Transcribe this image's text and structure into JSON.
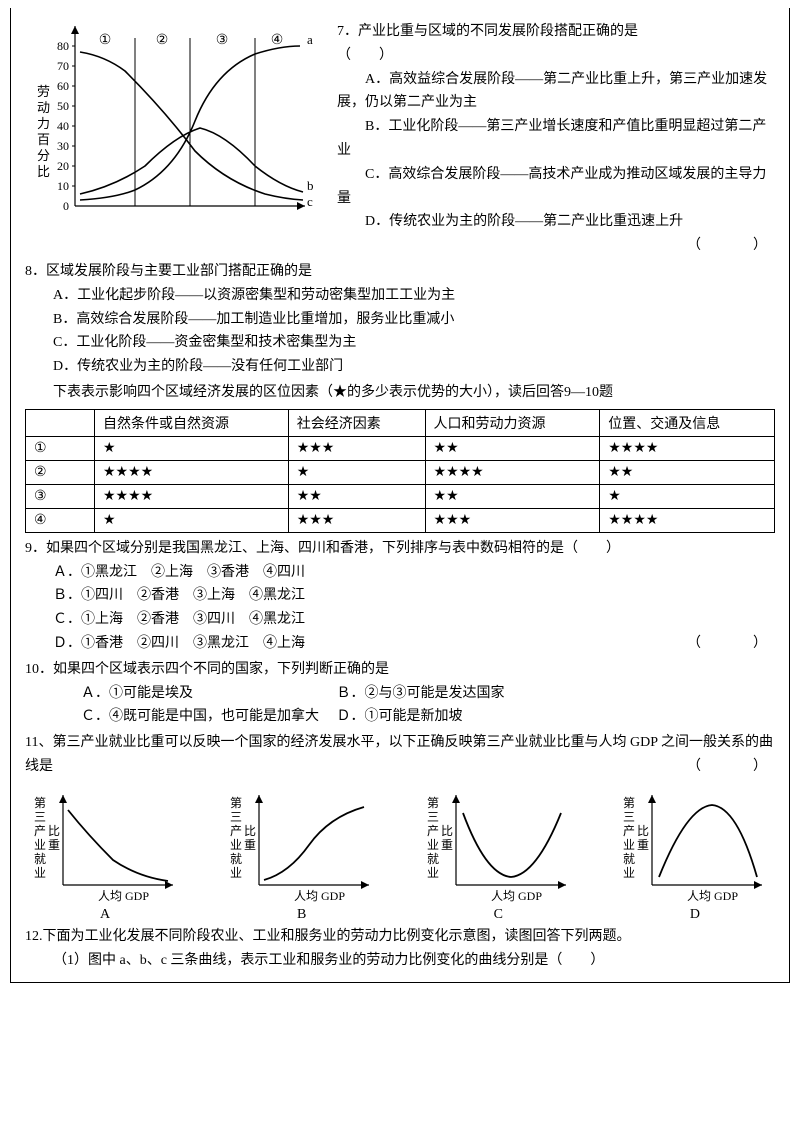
{
  "chart1": {
    "y_label": "劳动力百分比",
    "y_ticks": [
      0,
      10,
      20,
      30,
      40,
      50,
      60,
      70,
      80
    ],
    "segments": [
      "①",
      "②",
      "③",
      "④"
    ],
    "seg_x": [
      60,
      110,
      165,
      230,
      270
    ],
    "series": {
      "a": {
        "label": "a",
        "y_end": 78
      },
      "b": {
        "label": "b"
      },
      "c": {
        "label": "c"
      }
    },
    "colors": {
      "axis": "#000000",
      "line": "#000000"
    }
  },
  "q7": {
    "stem": "7．产业比重与区域的不同发展阶段搭配正确的是",
    "paren": "（　　）",
    "A": "A．高效益综合发展阶段——第二产业比重上升，第三产业加速发展，仍以第二产业为主",
    "B": "B．工业化阶段——第三产业增长速度和产值比重明显超过第二产业",
    "C": "C．高效综合发展阶段——高技术产业成为推动区域发展的主导力量",
    "D_pre": "D．传统农业为主的阶段——第二产业比重迅速上升",
    "D_paren": "（　　）"
  },
  "q8": {
    "stem": "8．区域发展阶段与主要工业部门搭配正确的是",
    "A": "A．工业化起步阶段——以资源密集型和劳动密集型加工工业为主",
    "B": "B．高效综合发展阶段——加工制造业比重增加，服务业比重减小",
    "C": "C．工业化阶段——资金密集型和技术密集型为主",
    "D": "D．传统农业为主的阶段——没有任何工业部门"
  },
  "intro910": "下表表示影响四个区域经济发展的区位因素（★的多少表示优势的大小），读后回答9—10题",
  "starTable": {
    "headers": [
      "",
      "自然条件或自然资源",
      "社会经济因素",
      "人口和劳动力资源",
      "位置、交通及信息"
    ],
    "rows": [
      {
        "num": "①",
        "c1": "★",
        "c2": "★★★",
        "c3": "★★",
        "c4": "★★★★"
      },
      {
        "num": "②",
        "c1": "★★★★",
        "c2": "★",
        "c3": "★★★★",
        "c4": "★★"
      },
      {
        "num": "③",
        "c1": "★★★★",
        "c2": "★★",
        "c3": "★★",
        "c4": "★"
      },
      {
        "num": "④",
        "c1": "★",
        "c2": "★★★",
        "c3": "★★★",
        "c4": "★★★★"
      }
    ]
  },
  "q9": {
    "stem": "9．如果四个区域分别是我国黑龙江、上海、四川和香港，下列排序与表中数码相符的是（　　）",
    "A": "Ａ．①黑龙江　②上海　③香港　④四川",
    "B": "Ｂ．①四川　②香港　③上海　④黑龙江",
    "C": "Ｃ．①上海　②香港　③四川　④黑龙江",
    "D": "Ｄ．①香港　②四川　③黑龙江　④上海",
    "paren": "（　　）"
  },
  "q10": {
    "stem": "10．如果四个区域表示四个不同的国家，下列判断正确的是",
    "A": "Ａ．①可能是埃及",
    "B": "Ｂ．②与③可能是发达国家",
    "C": "Ｃ．④既可能是中国，也可能是加拿大",
    "D": "Ｄ．①可能是新加坡"
  },
  "q11": {
    "stem": "11、第三产业就业比重可以反映一个国家的经济发展水平，以下正确反映第三产业就业比重与人均 GDP 之间一般关系的曲线是",
    "paren": "（　　）",
    "ylabel": "第三产业就业比重",
    "xlabel": "人均 GDP",
    "opts": [
      "A",
      "B",
      "C",
      "D"
    ]
  },
  "q12": {
    "stem": "12.下面为工业化发展不同阶段农业、工业和服务业的劳动力比例变化示意图，读图回答下列两题。",
    "sub1": "（1）图中 a、b、c 三条曲线，表示工业和服务业的劳动力比例变化的曲线分别是（　　）"
  }
}
